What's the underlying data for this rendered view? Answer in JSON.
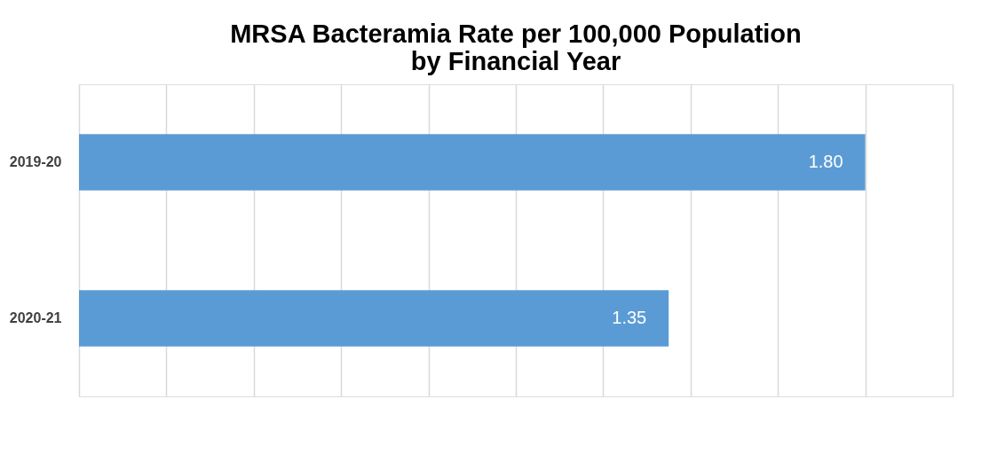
{
  "chart_data": {
    "type": "bar",
    "orientation": "horizontal",
    "title": "MRSA Bacteramia Rate per 100,000 Population\nby Financial Year",
    "categories": [
      "2019-20",
      "2020-21"
    ],
    "values": [
      1.8,
      1.35
    ],
    "value_labels": [
      "1.80",
      "1.35"
    ],
    "color": "#5b9bd5",
    "xlim": [
      0,
      2.0
    ],
    "xticks": [
      {
        "value": 0,
        "label": null
      },
      {
        "value": 0.2,
        "label": null
      },
      {
        "value": 0.4,
        "label": null
      },
      {
        "value": 0.6,
        "label": null
      },
      {
        "value": 0.8,
        "label": null
      },
      {
        "value": 1.0,
        "label": null
      },
      {
        "value": 1.2,
        "label": null
      },
      {
        "value": 1.4,
        "label": null
      },
      {
        "value": 1.6,
        "label": null
      },
      {
        "value": 1.8,
        "label": null
      },
      {
        "value": 2.0,
        "label": null
      }
    ],
    "grid": "x",
    "tick_labels": "y"
  }
}
